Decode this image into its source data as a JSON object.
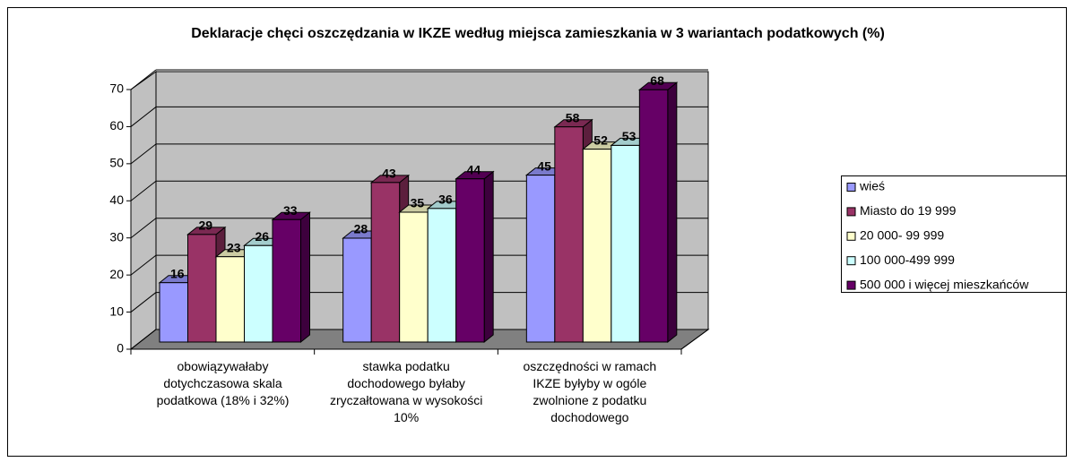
{
  "chart_data": {
    "type": "bar3d",
    "title": "Deklaracje chęci oszczędzania w IKZE według miejsca zamieszkania w 3 wariantach podatkowych (%)",
    "categories": [
      "obowiązywałaby\ndotychczasowa skala\npodatkowa (18% i 32%)",
      "stawka podatku\ndochodowego byłaby\nzryczałtowana w wysokości\n10%",
      "oszczędności w ramach\nIKZE byłyby w ogóle\nzwolnione z podatku\ndochodowego"
    ],
    "series": [
      {
        "name": "wieś",
        "color": "#9999FF",
        "values": [
          16,
          28,
          45
        ]
      },
      {
        "name": "Miasto do 19 999",
        "color": "#993366",
        "values": [
          29,
          43,
          58
        ]
      },
      {
        "name": "20 000- 99 999",
        "color": "#FFFFCC",
        "values": [
          23,
          35,
          52
        ]
      },
      {
        "name": "100 000-499 999",
        "color": "#CCFFFF",
        "values": [
          26,
          36,
          53
        ]
      },
      {
        "name": "500 000 i więcej mieszkańców",
        "color": "#660066",
        "values": [
          33,
          44,
          68
        ]
      }
    ],
    "ylim": [
      0,
      70
    ],
    "yticks": [
      0,
      10,
      20,
      30,
      40,
      50,
      60,
      70
    ],
    "grid": true,
    "legend": "right"
  }
}
